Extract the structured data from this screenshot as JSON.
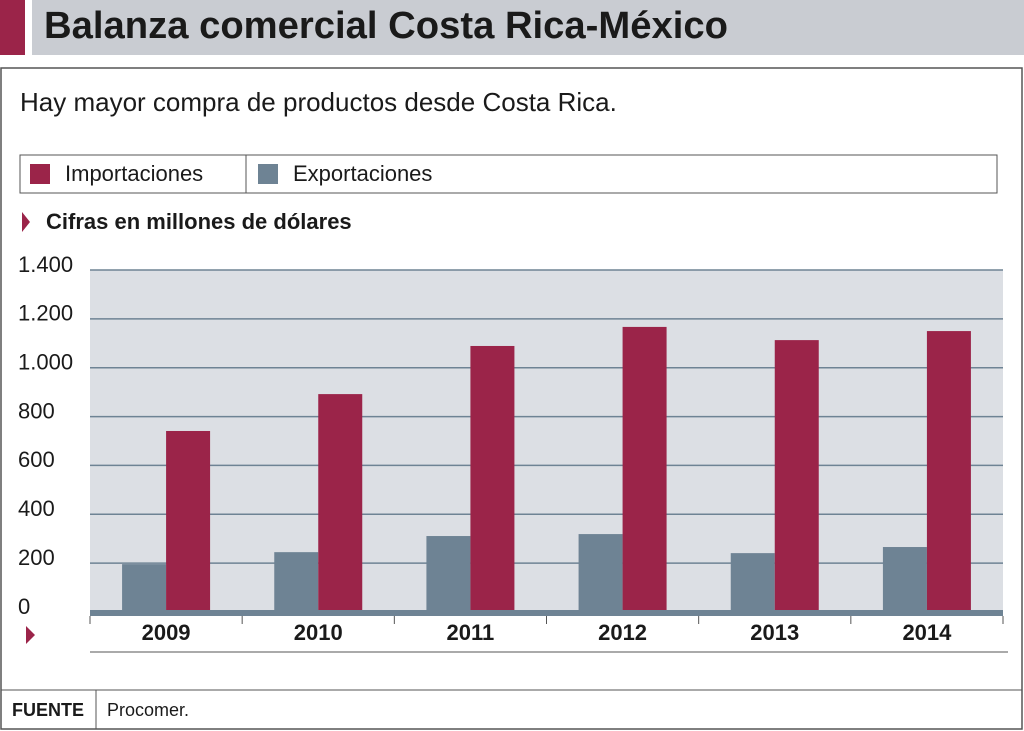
{
  "chart_data": {
    "type": "bar",
    "title": "Balanza comercial Costa Rica-México",
    "subtitle": "Hay mayor compra de productos desde Costa Rica.",
    "y_label": "Cifras en millones de dólares",
    "categories": [
      "2009",
      "2010",
      "2011",
      "2012",
      "2013",
      "2014"
    ],
    "series": [
      {
        "name": "Importaciones",
        "color": "#9b2449",
        "values": [
          741,
          892,
          1089,
          1167,
          1113,
          1150
        ]
      },
      {
        "name": "Exportaciones",
        "color": "#6e8394",
        "values": [
          196,
          245,
          311,
          319,
          241,
          266
        ]
      }
    ],
    "ylim": [
      0,
      1400
    ],
    "yticks": [
      0,
      200,
      400,
      600,
      800,
      {
        "value": 1000,
        "label": "1.000"
      },
      {
        "value": 1200,
        "label": "1.200"
      },
      {
        "value": 1400,
        "label": "1.400"
      }
    ],
    "grid": true,
    "source_label": "FUENTE",
    "source": "Procomer."
  }
}
